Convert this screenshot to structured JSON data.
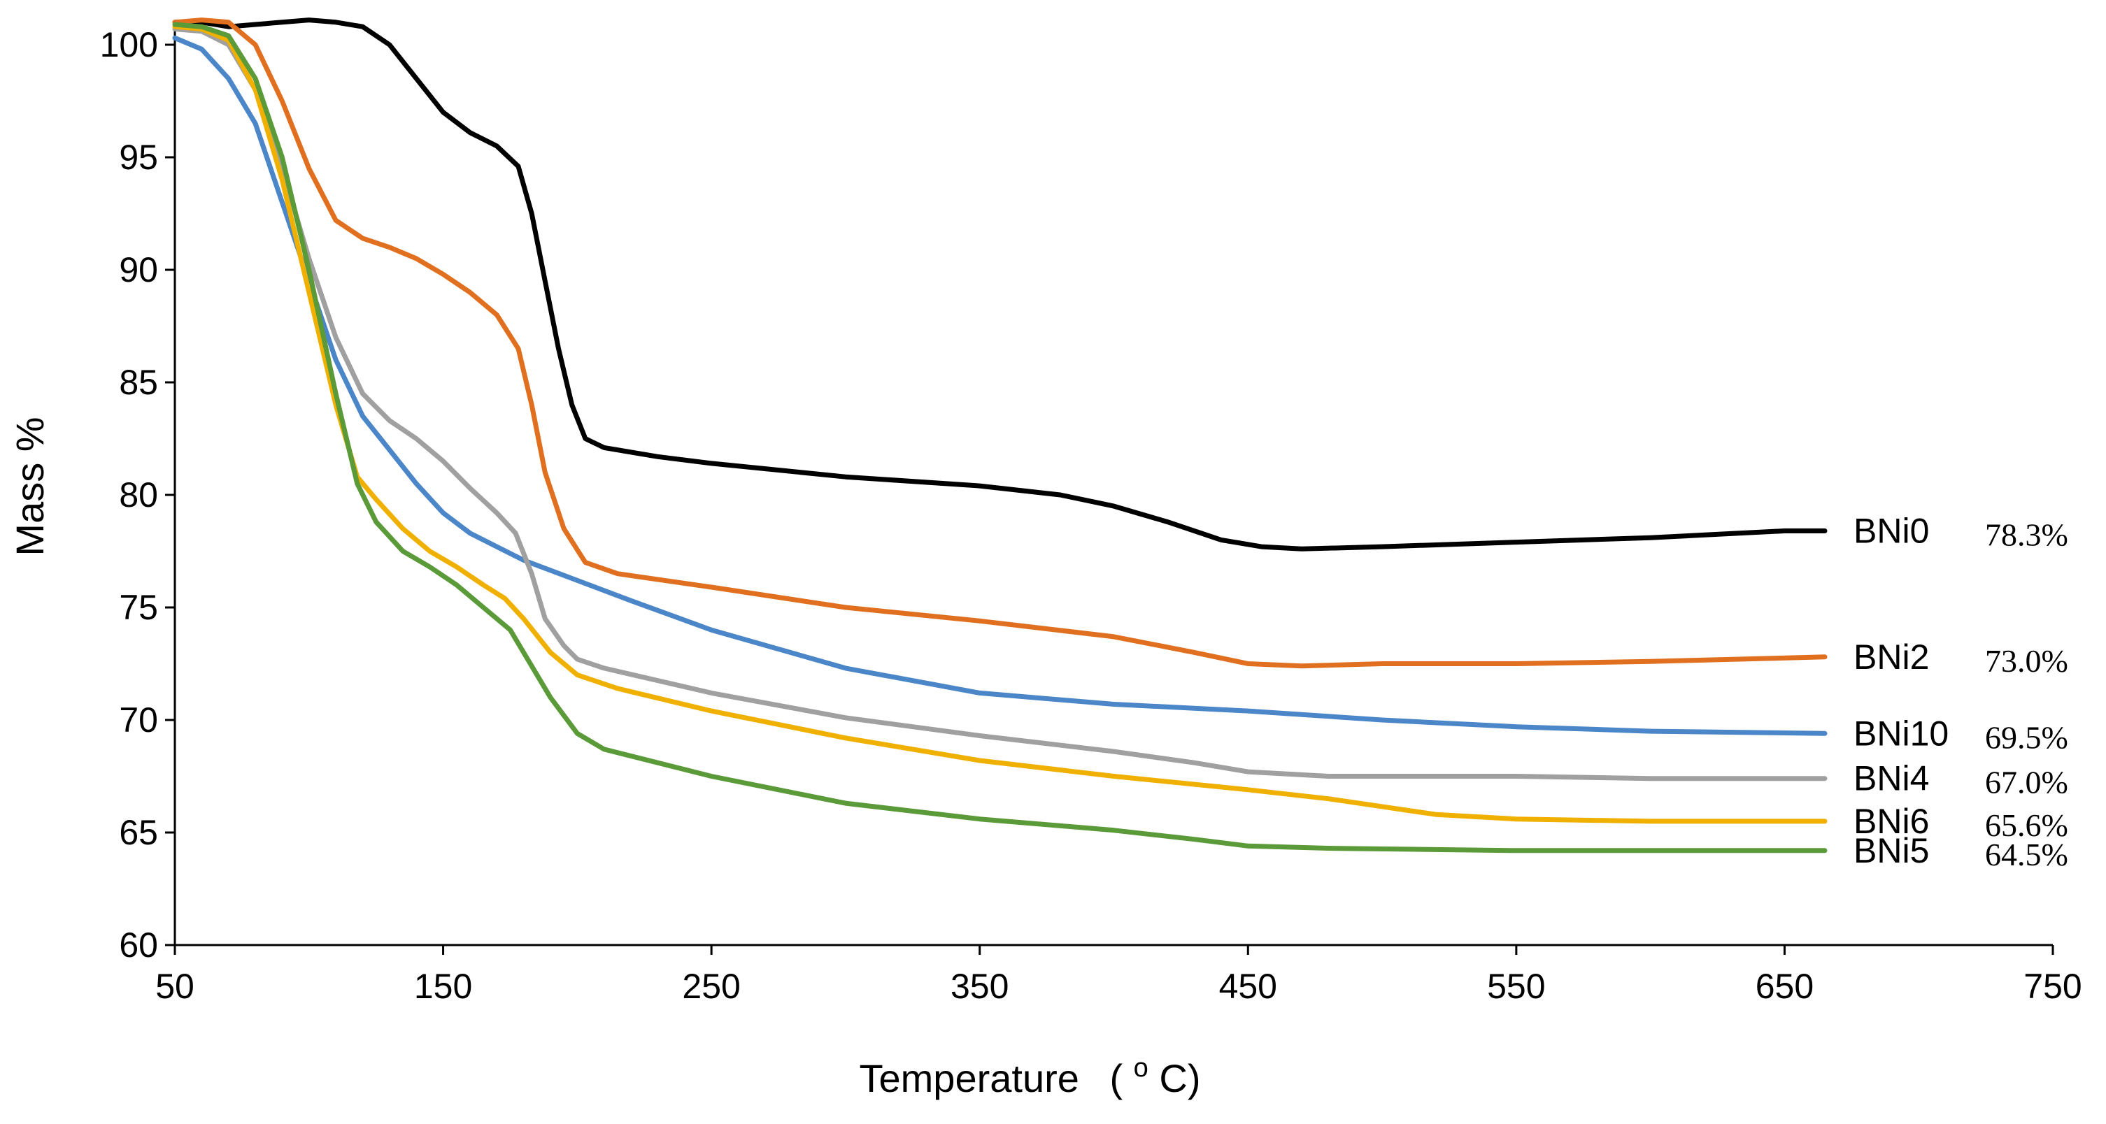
{
  "chart_data": {
    "type": "line",
    "title": "",
    "xlabel": "Temperature",
    "xlabel_unit_prefix": "(",
    "xlabel_unit_sup": "o",
    "xlabel_unit_suffix": "C)",
    "ylabel": "Mass %",
    "xlim": [
      50,
      750
    ],
    "ylim": [
      60,
      102
    ],
    "xticks": [
      50,
      150,
      250,
      350,
      450,
      550,
      650,
      750
    ],
    "yticks": [
      60,
      65,
      70,
      75,
      80,
      85,
      90,
      95,
      100
    ],
    "grid": false,
    "series": [
      {
        "name": "BNi0",
        "label": "BNi0",
        "residue": "78.3%",
        "color": "#000000",
        "points": [
          [
            50,
            101.0
          ],
          [
            60,
            101.0
          ],
          [
            70,
            100.8
          ],
          [
            80,
            100.9
          ],
          [
            90,
            101.0
          ],
          [
            100,
            101.1
          ],
          [
            110,
            101.0
          ],
          [
            120,
            100.8
          ],
          [
            130,
            100.0
          ],
          [
            140,
            98.5
          ],
          [
            150,
            97.0
          ],
          [
            160,
            96.1
          ],
          [
            170,
            95.5
          ],
          [
            178,
            94.6
          ],
          [
            183,
            92.5
          ],
          [
            188,
            89.5
          ],
          [
            193,
            86.5
          ],
          [
            198,
            84.0
          ],
          [
            203,
            82.5
          ],
          [
            210,
            82.1
          ],
          [
            230,
            81.7
          ],
          [
            250,
            81.4
          ],
          [
            300,
            80.8
          ],
          [
            350,
            80.4
          ],
          [
            380,
            80.0
          ],
          [
            400,
            79.5
          ],
          [
            420,
            78.8
          ],
          [
            440,
            78.0
          ],
          [
            455,
            77.7
          ],
          [
            470,
            77.6
          ],
          [
            500,
            77.7
          ],
          [
            550,
            77.9
          ],
          [
            600,
            78.1
          ],
          [
            650,
            78.4
          ],
          [
            665,
            78.4
          ]
        ]
      },
      {
        "name": "BNi2",
        "label": "BNi2",
        "residue": "73.0%",
        "color": "#e07020",
        "points": [
          [
            50,
            101.0
          ],
          [
            60,
            101.1
          ],
          [
            70,
            101.0
          ],
          [
            80,
            100.0
          ],
          [
            90,
            97.5
          ],
          [
            100,
            94.5
          ],
          [
            110,
            92.2
          ],
          [
            120,
            91.4
          ],
          [
            130,
            91.0
          ],
          [
            140,
            90.5
          ],
          [
            150,
            89.8
          ],
          [
            160,
            89.0
          ],
          [
            170,
            88.0
          ],
          [
            178,
            86.5
          ],
          [
            183,
            84.0
          ],
          [
            188,
            81.0
          ],
          [
            195,
            78.5
          ],
          [
            203,
            77.0
          ],
          [
            215,
            76.5
          ],
          [
            250,
            75.9
          ],
          [
            300,
            75.0
          ],
          [
            350,
            74.4
          ],
          [
            400,
            73.7
          ],
          [
            430,
            73.0
          ],
          [
            450,
            72.5
          ],
          [
            470,
            72.4
          ],
          [
            500,
            72.5
          ],
          [
            550,
            72.5
          ],
          [
            600,
            72.6
          ],
          [
            665,
            72.8
          ]
        ]
      },
      {
        "name": "BNi10",
        "label": "BNi10",
        "residue": "69.5%",
        "color": "#4a86c8",
        "points": [
          [
            50,
            100.3
          ],
          [
            60,
            99.8
          ],
          [
            70,
            98.5
          ],
          [
            80,
            96.5
          ],
          [
            90,
            93.0
          ],
          [
            100,
            89.5
          ],
          [
            110,
            86.0
          ],
          [
            120,
            83.5
          ],
          [
            130,
            82.0
          ],
          [
            140,
            80.5
          ],
          [
            150,
            79.2
          ],
          [
            160,
            78.3
          ],
          [
            170,
            77.7
          ],
          [
            180,
            77.1
          ],
          [
            200,
            76.2
          ],
          [
            220,
            75.3
          ],
          [
            250,
            74.0
          ],
          [
            300,
            72.3
          ],
          [
            350,
            71.2
          ],
          [
            400,
            70.7
          ],
          [
            450,
            70.4
          ],
          [
            500,
            70.0
          ],
          [
            550,
            69.7
          ],
          [
            600,
            69.5
          ],
          [
            665,
            69.4
          ]
        ]
      },
      {
        "name": "BNi4",
        "label": "BNi4",
        "residue": "67.0%",
        "color": "#a0a0a0",
        "points": [
          [
            50,
            100.7
          ],
          [
            60,
            100.6
          ],
          [
            70,
            100.0
          ],
          [
            80,
            98.0
          ],
          [
            90,
            94.5
          ],
          [
            100,
            90.5
          ],
          [
            110,
            87.0
          ],
          [
            120,
            84.5
          ],
          [
            130,
            83.3
          ],
          [
            140,
            82.5
          ],
          [
            150,
            81.5
          ],
          [
            160,
            80.3
          ],
          [
            170,
            79.2
          ],
          [
            177,
            78.3
          ],
          [
            183,
            76.5
          ],
          [
            188,
            74.5
          ],
          [
            195,
            73.3
          ],
          [
            200,
            72.7
          ],
          [
            210,
            72.3
          ],
          [
            250,
            71.2
          ],
          [
            300,
            70.1
          ],
          [
            350,
            69.3
          ],
          [
            400,
            68.6
          ],
          [
            430,
            68.1
          ],
          [
            450,
            67.7
          ],
          [
            480,
            67.5
          ],
          [
            550,
            67.5
          ],
          [
            600,
            67.4
          ],
          [
            665,
            67.4
          ]
        ]
      },
      {
        "name": "BNi6",
        "label": "BNi6",
        "residue": "65.6%",
        "color": "#f0b000",
        "points": [
          [
            50,
            100.8
          ],
          [
            60,
            100.7
          ],
          [
            70,
            100.2
          ],
          [
            80,
            98.0
          ],
          [
            90,
            94.0
          ],
          [
            100,
            89.0
          ],
          [
            110,
            84.0
          ],
          [
            118,
            80.8
          ],
          [
            125,
            79.8
          ],
          [
            135,
            78.5
          ],
          [
            145,
            77.5
          ],
          [
            155,
            76.8
          ],
          [
            165,
            76.0
          ],
          [
            173,
            75.4
          ],
          [
            180,
            74.5
          ],
          [
            190,
            73.0
          ],
          [
            200,
            72.0
          ],
          [
            215,
            71.4
          ],
          [
            250,
            70.4
          ],
          [
            300,
            69.2
          ],
          [
            350,
            68.2
          ],
          [
            400,
            67.5
          ],
          [
            450,
            66.9
          ],
          [
            480,
            66.5
          ],
          [
            520,
            65.8
          ],
          [
            550,
            65.6
          ],
          [
            600,
            65.5
          ],
          [
            665,
            65.5
          ]
        ]
      },
      {
        "name": "BNi5",
        "label": "BNi5",
        "residue": "64.5%",
        "color": "#5a9a38",
        "points": [
          [
            50,
            100.9
          ],
          [
            60,
            100.8
          ],
          [
            70,
            100.4
          ],
          [
            80,
            98.5
          ],
          [
            90,
            95.0
          ],
          [
            100,
            90.0
          ],
          [
            110,
            84.5
          ],
          [
            118,
            80.5
          ],
          [
            125,
            78.8
          ],
          [
            135,
            77.5
          ],
          [
            145,
            76.8
          ],
          [
            155,
            76.0
          ],
          [
            165,
            75.0
          ],
          [
            175,
            74.0
          ],
          [
            180,
            73.0
          ],
          [
            190,
            71.0
          ],
          [
            200,
            69.4
          ],
          [
            210,
            68.7
          ],
          [
            250,
            67.5
          ],
          [
            300,
            66.3
          ],
          [
            350,
            65.6
          ],
          [
            400,
            65.1
          ],
          [
            430,
            64.7
          ],
          [
            450,
            64.4
          ],
          [
            480,
            64.3
          ],
          [
            550,
            64.2
          ],
          [
            600,
            64.2
          ],
          [
            665,
            64.2
          ]
        ]
      }
    ]
  }
}
